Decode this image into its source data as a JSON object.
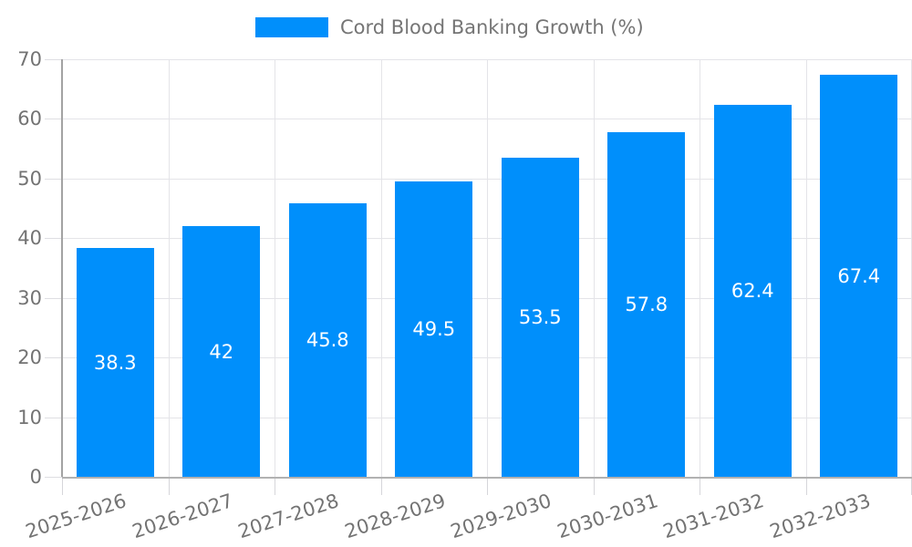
{
  "chart_data": {
    "type": "bar",
    "title": "Cord Blood Banking Growth (%)",
    "series_name": "Cord Blood Banking Growth (%)",
    "categories": [
      "2025-2026",
      "2026-2027",
      "2027-2028",
      "2028-2029",
      "2029-2030",
      "2030-2031",
      "2031-2032",
      "2032-2033"
    ],
    "values": [
      38.3,
      42,
      45.8,
      49.5,
      53.5,
      57.8,
      62.4,
      67.4
    ],
    "value_labels": [
      "38.3",
      "42",
      "45.8",
      "49.5",
      "53.5",
      "57.8",
      "62.4",
      "67.4"
    ],
    "xlabel": "",
    "ylabel": "",
    "ylim": [
      0,
      70
    ],
    "yticks": [
      0,
      10,
      20,
      30,
      40,
      50,
      60,
      70
    ],
    "grid": true,
    "legend_position": "top-center",
    "x_label_rotation_deg": -18,
    "colors": {
      "bar": "#008FFB",
      "bar_value_text": "#ffffff",
      "axis_text": "#737373",
      "legend_text": "#757575",
      "gridline": "#e4e4e8",
      "axis_line": "#a3a3a3",
      "background": "#ffffff"
    }
  }
}
